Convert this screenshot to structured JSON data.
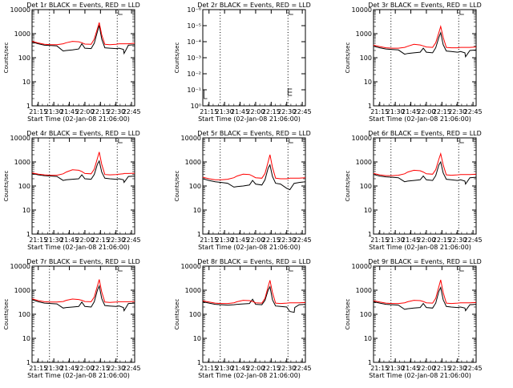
{
  "time_axis": {
    "start_label": "Start Time (02-Jan-08 21:06:00)",
    "xlim": [
      21.15,
      22.8
    ],
    "ticks": [
      {
        "label": "21:15",
        "value": 21.25
      },
      {
        "label": "21:30",
        "value": 21.5
      },
      {
        "label": "21:45",
        "value": 21.75
      },
      {
        "label": "22:00",
        "value": 22.0
      },
      {
        "label": "22:15",
        "value": 22.25
      },
      {
        "label": "22:30",
        "value": 22.5
      },
      {
        "label": "22:45",
        "value": 22.75
      }
    ],
    "vlines": [
      21.43,
      22.52
    ]
  },
  "ylabel": "Counts/sec",
  "colors": {
    "events": "#000000",
    "lld": "#ff0000",
    "background": "#ffffff"
  },
  "chart_data": [
    {
      "type": "line",
      "detector": "Det 1r",
      "title": "Det 1r BLACK = Events, RED = LLD",
      "ylog": true,
      "ylim": [
        1,
        10000
      ],
      "yticks": [
        {
          "label": "1",
          "value": 1
        },
        {
          "label": "10",
          "value": 10
        },
        {
          "label": "100",
          "value": 100
        },
        {
          "label": "1000",
          "value": 1000
        },
        {
          "label": "10000",
          "value": 10000
        }
      ],
      "x": [
        21.15,
        21.25,
        21.35,
        21.45,
        21.55,
        21.65,
        21.7,
        21.8,
        21.9,
        21.95,
        22.0,
        22.1,
        22.15,
        22.2,
        22.23,
        22.27,
        22.32,
        22.4,
        22.5,
        22.55,
        22.62,
        22.63,
        22.7,
        22.8
      ],
      "series": [
        {
          "name": "Events",
          "color": "#000000",
          "values": [
            450,
            380,
            330,
            320,
            310,
            190,
            200,
            210,
            230,
            380,
            250,
            240,
            400,
            1200,
            2200,
            600,
            260,
            250,
            240,
            250,
            220,
            150,
            330,
            350
          ]
        },
        {
          "name": "LLD",
          "color": "#ff0000",
          "values": [
            480,
            410,
            360,
            350,
            350,
            380,
            420,
            480,
            460,
            420,
            370,
            360,
            600,
            1600,
            2900,
            900,
            360,
            350,
            360,
            380,
            380,
            380,
            380,
            400
          ]
        }
      ]
    },
    {
      "type": "line",
      "detector": "Det 2r",
      "title": "Det 2r BLACK = Events, RED = LLD",
      "ylog": true,
      "ylim": [
        1,
        1e-06
      ],
      "yticks": [
        {
          "label": "10⁰",
          "value": 1
        },
        {
          "label": "10⁻¹",
          "value": 0.1
        },
        {
          "label": "10⁻²",
          "value": 0.01
        },
        {
          "label": "10⁻³",
          "value": 0.001
        },
        {
          "label": "10⁻⁴",
          "value": 0.0001
        },
        {
          "label": "10⁻⁵",
          "value": 1e-05
        },
        {
          "label": "10⁻⁶",
          "value": 1e-06
        }
      ],
      "x": [],
      "series": []
    },
    {
      "type": "line",
      "detector": "Det 3r",
      "title": "Det 3r BLACK = Events, RED = LLD",
      "ylog": true,
      "ylim": [
        1,
        10000
      ],
      "yticks": [
        {
          "label": "1",
          "value": 1
        },
        {
          "label": "10",
          "value": 10
        },
        {
          "label": "100",
          "value": 100
        },
        {
          "label": "1000",
          "value": 1000
        },
        {
          "label": "10000",
          "value": 10000
        }
      ],
      "x": [
        21.15,
        21.25,
        21.35,
        21.45,
        21.55,
        21.65,
        21.7,
        21.8,
        21.9,
        21.95,
        22.0,
        22.1,
        22.15,
        22.2,
        22.23,
        22.27,
        22.32,
        22.4,
        22.5,
        22.55,
        22.62,
        22.63,
        22.7,
        22.8
      ],
      "series": [
        {
          "name": "Events",
          "color": "#000000",
          "values": [
            300,
            260,
            230,
            220,
            210,
            140,
            150,
            160,
            170,
            250,
            170,
            160,
            260,
            700,
            1100,
            350,
            190,
            180,
            170,
            180,
            160,
            110,
            200,
            210
          ]
        },
        {
          "name": "LLD",
          "color": "#ff0000",
          "values": [
            330,
            290,
            260,
            250,
            250,
            270,
            300,
            360,
            340,
            310,
            280,
            270,
            420,
            1100,
            2000,
            700,
            270,
            260,
            260,
            270,
            270,
            270,
            270,
            280
          ]
        }
      ]
    },
    {
      "type": "line",
      "detector": "Det 4r",
      "title": "Det 4r BLACK = Events, RED = LLD",
      "ylog": true,
      "ylim": [
        1,
        10000
      ],
      "yticks": [
        {
          "label": "1",
          "value": 1
        },
        {
          "label": "10",
          "value": 10
        },
        {
          "label": "100",
          "value": 100
        },
        {
          "label": "1000",
          "value": 1000
        },
        {
          "label": "10000",
          "value": 10000
        }
      ],
      "x": [
        21.15,
        21.25,
        21.35,
        21.45,
        21.55,
        21.65,
        21.7,
        21.8,
        21.9,
        21.95,
        22.0,
        22.1,
        22.15,
        22.2,
        22.23,
        22.27,
        22.32,
        22.4,
        22.5,
        22.55,
        22.62,
        22.63,
        22.7,
        22.8
      ],
      "series": [
        {
          "name": "Events",
          "color": "#000000",
          "values": [
            330,
            290,
            270,
            260,
            250,
            170,
            180,
            190,
            200,
            290,
            200,
            190,
            300,
            800,
            1100,
            380,
            210,
            200,
            190,
            200,
            180,
            140,
            250,
            260
          ]
        },
        {
          "name": "LLD",
          "color": "#ff0000",
          "values": [
            350,
            310,
            290,
            280,
            280,
            320,
            380,
            470,
            450,
            400,
            330,
            320,
            500,
            1400,
            2600,
            800,
            300,
            290,
            300,
            310,
            320,
            330,
            330,
            340
          ]
        }
      ]
    },
    {
      "type": "line",
      "detector": "Det 5r",
      "title": "Det 5r BLACK = Events, RED = LLD",
      "ylog": true,
      "ylim": [
        1,
        10000
      ],
      "yticks": [
        {
          "label": "1",
          "value": 1
        },
        {
          "label": "10",
          "value": 10
        },
        {
          "label": "100",
          "value": 100
        },
        {
          "label": "1000",
          "value": 1000
        },
        {
          "label": "10000",
          "value": 10000
        }
      ],
      "x": [
        21.15,
        21.25,
        21.35,
        21.45,
        21.55,
        21.65,
        21.7,
        21.8,
        21.9,
        21.95,
        22.0,
        22.1,
        22.15,
        22.2,
        22.23,
        22.27,
        22.32,
        22.4,
        22.5,
        22.55,
        22.62,
        22.63,
        22.7,
        22.8
      ],
      "series": [
        {
          "name": "Events",
          "color": "#000000",
          "values": [
            200,
            170,
            150,
            140,
            130,
            90,
            95,
            100,
            110,
            170,
            120,
            110,
            180,
            550,
            750,
            250,
            130,
            120,
            80,
            70,
            130,
            130,
            140,
            150
          ]
        },
        {
          "name": "LLD",
          "color": "#ff0000",
          "values": [
            230,
            200,
            180,
            180,
            190,
            220,
            260,
            310,
            300,
            260,
            220,
            210,
            330,
            1000,
            2000,
            600,
            210,
            200,
            200,
            210,
            210,
            210,
            210,
            220
          ]
        }
      ]
    },
    {
      "type": "line",
      "detector": "Det 6r",
      "title": "Det 6r BLACK = Events, RED = LLD",
      "ylog": true,
      "ylim": [
        1,
        10000
      ],
      "yticks": [
        {
          "label": "1",
          "value": 1
        },
        {
          "label": "10",
          "value": 10
        },
        {
          "label": "100",
          "value": 100
        },
        {
          "label": "1000",
          "value": 1000
        },
        {
          "label": "10000",
          "value": 10000
        }
      ],
      "x": [
        21.15,
        21.25,
        21.35,
        21.45,
        21.55,
        21.65,
        21.7,
        21.8,
        21.9,
        21.95,
        22.0,
        22.1,
        22.15,
        22.2,
        22.23,
        22.27,
        22.32,
        22.4,
        22.5,
        22.55,
        22.62,
        22.63,
        22.7,
        22.8
      ],
      "series": [
        {
          "name": "Events",
          "color": "#000000",
          "values": [
            300,
            260,
            240,
            230,
            220,
            150,
            160,
            170,
            180,
            260,
            180,
            170,
            270,
            750,
            1000,
            350,
            190,
            180,
            170,
            180,
            160,
            120,
            220,
            230
          ]
        },
        {
          "name": "LLD",
          "color": "#ff0000",
          "values": [
            330,
            290,
            270,
            270,
            280,
            320,
            380,
            450,
            430,
            380,
            320,
            310,
            480,
            1300,
            2200,
            750,
            290,
            280,
            290,
            300,
            300,
            300,
            300,
            310
          ]
        }
      ]
    },
    {
      "type": "line",
      "detector": "Det 7r",
      "title": "Det 7r BLACK = Events, RED = LLD",
      "ylog": true,
      "ylim": [
        1,
        10000
      ],
      "yticks": [
        {
          "label": "1",
          "value": 1
        },
        {
          "label": "10",
          "value": 10
        },
        {
          "label": "100",
          "value": 100
        },
        {
          "label": "1000",
          "value": 1000
        },
        {
          "label": "10000",
          "value": 10000
        }
      ],
      "x": [
        21.15,
        21.25,
        21.35,
        21.45,
        21.55,
        21.65,
        21.7,
        21.8,
        21.9,
        21.95,
        22.0,
        22.1,
        22.15,
        22.2,
        22.23,
        22.27,
        22.32,
        22.4,
        22.5,
        22.55,
        22.62,
        22.63,
        22.7,
        22.8
      ],
      "series": [
        {
          "name": "Events",
          "color": "#000000",
          "values": [
            400,
            330,
            290,
            280,
            270,
            180,
            190,
            200,
            210,
            320,
            210,
            200,
            330,
            1000,
            1500,
            450,
            230,
            220,
            210,
            220,
            190,
            140,
            280,
            290
          ]
        },
        {
          "name": "LLD",
          "color": "#ff0000",
          "values": [
            440,
            370,
            330,
            320,
            320,
            340,
            380,
            430,
            410,
            380,
            340,
            330,
            520,
            1500,
            2800,
            850,
            320,
            310,
            320,
            330,
            330,
            330,
            330,
            340
          ]
        }
      ]
    },
    {
      "type": "line",
      "detector": "Det 8r",
      "title": "Det 8r BLACK = Events, RED = LLD",
      "ylog": true,
      "ylim": [
        1,
        10000
      ],
      "yticks": [
        {
          "label": "1",
          "value": 1
        },
        {
          "label": "10",
          "value": 10
        },
        {
          "label": "100",
          "value": 100
        },
        {
          "label": "1000",
          "value": 1000
        },
        {
          "label": "10000",
          "value": 10000
        }
      ],
      "x": [
        21.15,
        21.25,
        21.35,
        21.45,
        21.55,
        21.65,
        21.7,
        21.8,
        21.9,
        21.95,
        22.0,
        22.1,
        22.15,
        22.2,
        22.23,
        22.27,
        22.32,
        22.4,
        22.5,
        22.55,
        22.62,
        22.63,
        22.7,
        22.8
      ],
      "series": [
        {
          "name": "Events",
          "color": "#000000",
          "values": [
            330,
            290,
            260,
            250,
            240,
            250,
            260,
            270,
            280,
            420,
            260,
            250,
            380,
            1000,
            1400,
            400,
            220,
            210,
            200,
            130,
            120,
            190,
            250,
            260
          ]
        },
        {
          "name": "LLD",
          "color": "#ff0000",
          "values": [
            360,
            320,
            290,
            280,
            280,
            300,
            330,
            380,
            370,
            340,
            300,
            290,
            460,
            1400,
            2600,
            800,
            290,
            280,
            290,
            300,
            300,
            300,
            300,
            310
          ]
        }
      ]
    },
    {
      "type": "line",
      "detector": "Det 9r",
      "title": "Det 9r BLACK = Events, RED = LLD",
      "ylog": true,
      "ylim": [
        1,
        10000
      ],
      "yticks": [
        {
          "label": "1",
          "value": 1
        },
        {
          "label": "10",
          "value": 10
        },
        {
          "label": "100",
          "value": 100
        },
        {
          "label": "1000",
          "value": 1000
        },
        {
          "label": "10000",
          "value": 10000
        }
      ],
      "x": [
        21.15,
        21.25,
        21.35,
        21.45,
        21.55,
        21.65,
        21.7,
        21.8,
        21.9,
        21.95,
        22.0,
        22.1,
        22.15,
        22.2,
        22.23,
        22.27,
        22.32,
        22.4,
        22.5,
        22.55,
        22.62,
        22.63,
        22.7,
        22.8
      ],
      "series": [
        {
          "name": "Events",
          "color": "#000000",
          "values": [
            330,
            290,
            260,
            250,
            240,
            160,
            170,
            180,
            190,
            280,
            190,
            180,
            290,
            900,
            1300,
            400,
            210,
            200,
            190,
            200,
            180,
            140,
            250,
            260
          ]
        },
        {
          "name": "LLD",
          "color": "#ff0000",
          "values": [
            360,
            320,
            290,
            280,
            280,
            300,
            330,
            380,
            370,
            340,
            300,
            290,
            460,
            1400,
            2700,
            800,
            290,
            280,
            290,
            300,
            300,
            300,
            300,
            310
          ]
        }
      ]
    }
  ]
}
